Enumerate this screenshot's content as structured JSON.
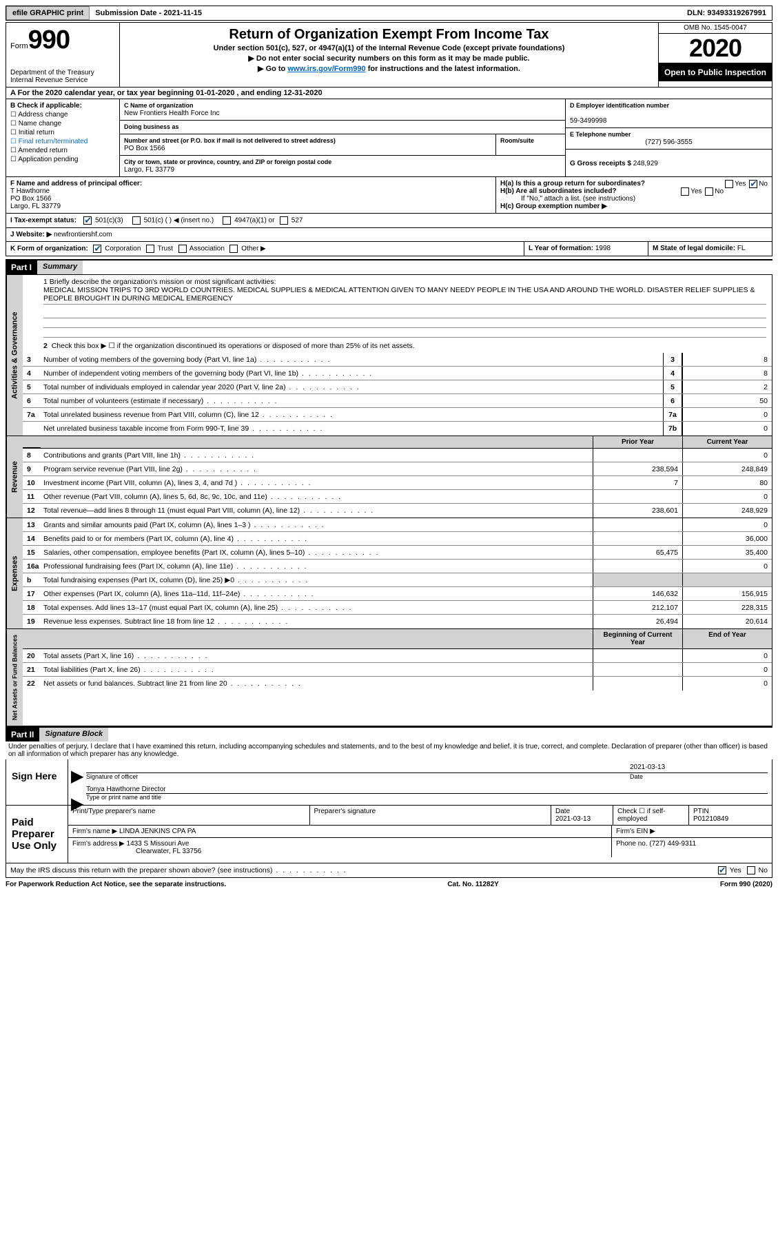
{
  "topbar": {
    "efile_btn": "efile GRAPHIC print",
    "submission_label": "Submission Date - 2021-11-15",
    "dln_label": "DLN: 93493319267991"
  },
  "header": {
    "form_word": "Form",
    "form_number": "990",
    "dept": "Department of the Treasury\nInternal Revenue Service",
    "title": "Return of Organization Exempt From Income Tax",
    "subtitle": "Under section 501(c), 527, or 4947(a)(1) of the Internal Revenue Code (except private foundations)",
    "arrow1": "▶ Do not enter social security numbers on this form as it may be made public.",
    "arrow2_pre": "▶ Go to ",
    "arrow2_link": "www.irs.gov/Form990",
    "arrow2_post": " for instructions and the latest information.",
    "omb": "OMB No. 1545-0047",
    "year": "2020",
    "inspection": "Open to Public Inspection"
  },
  "row_a": "A For the 2020 calendar year, or tax year beginning 01-01-2020    , and ending 12-31-2020",
  "col_b": {
    "header": "B Check if applicable:",
    "items": [
      "Address change",
      "Name change",
      "Initial return",
      "Final return/terminated",
      "Amended return",
      "Application pending"
    ]
  },
  "col_c": {
    "name_label": "C Name of organization",
    "name": "New Frontiers Health Force Inc",
    "dba_label": "Doing business as",
    "dba": "",
    "addr_label": "Number and street (or P.O. box if mail is not delivered to street address)",
    "addr": "PO Box 1566",
    "room_label": "Room/suite",
    "city_label": "City or town, state or province, country, and ZIP or foreign postal code",
    "city": "Largo, FL  33779"
  },
  "col_d": {
    "ein_label": "D Employer identification number",
    "ein": "59-3499998",
    "phone_label": "E Telephone number",
    "phone": "(727) 596-3555",
    "gross_label": "G Gross receipts $ ",
    "gross": "248,929"
  },
  "row_f": {
    "f_label": "F Name and address of principal officer:",
    "f_name": "T Hawthorne",
    "f_addr1": "PO Box 1566",
    "f_addr2": "Largo, FL  33779",
    "ha_label": "H(a)  Is this a group return for subordinates?",
    "hb_label": "H(b)  Are all subordinates included?",
    "hb_note": "If \"No,\" attach a list. (see instructions)",
    "hc_label": "H(c)  Group exemption number ▶",
    "yes": "Yes",
    "no": "No"
  },
  "row_i": {
    "label": "I  Tax-exempt status:",
    "opt1": "501(c)(3)",
    "opt2": "501(c) (  ) ◀ (insert no.)",
    "opt3": "4947(a)(1) or",
    "opt4": "527"
  },
  "row_j": {
    "label": "J  Website: ▶ ",
    "value": "newfrontiershf.com"
  },
  "row_k": {
    "label": "K Form of organization:",
    "opts": [
      "Corporation",
      "Trust",
      "Association",
      "Other ▶"
    ],
    "l_label": "L Year of formation: ",
    "l_val": "1998",
    "m_label": "M State of legal domicile: ",
    "m_val": "FL"
  },
  "part1": {
    "tag": "Part I",
    "title": "Summary"
  },
  "summary": {
    "q1_label": "1   Briefly describe the organization's mission or most significant activities:",
    "q1_text": "MEDICAL MISSION TRIPS TO 3RD WORLD COUNTRIES. MEDICAL SUPPLIES & MEDICAL ATTENTION GIVEN TO MANY NEEDY PEOPLE IN THE USA AND AROUND THE WORLD. DISASTER RELIEF SUPPLIES & PEOPLE BROUGHT IN DURING MEDICAL EMERGENCY",
    "q2": "Check this box ▶ ☐  if the organization discontinued its operations or disposed of more than 25% of its net assets."
  },
  "gov_lines": [
    {
      "n": "3",
      "d": "Number of voting members of the governing body (Part VI, line 1a)",
      "box": "3",
      "v": "8"
    },
    {
      "n": "4",
      "d": "Number of independent voting members of the governing body (Part VI, line 1b)",
      "box": "4",
      "v": "8"
    },
    {
      "n": "5",
      "d": "Total number of individuals employed in calendar year 2020 (Part V, line 2a)",
      "box": "5",
      "v": "2"
    },
    {
      "n": "6",
      "d": "Total number of volunteers (estimate if necessary)",
      "box": "6",
      "v": "50"
    },
    {
      "n": "7a",
      "d": "Total unrelated business revenue from Part VIII, column (C), line 12",
      "box": "7a",
      "v": "0"
    },
    {
      "n": "",
      "d": "Net unrelated business taxable income from Form 990-T, line 39",
      "box": "7b",
      "v": "0"
    }
  ],
  "th": {
    "prior": "Prior Year",
    "current": "Current Year",
    "begin": "Beginning of Current Year",
    "end": "End of Year"
  },
  "rev_lines": [
    {
      "n": "8",
      "d": "Contributions and grants (Part VIII, line 1h)",
      "p": "",
      "c": "0"
    },
    {
      "n": "9",
      "d": "Program service revenue (Part VIII, line 2g)",
      "p": "238,594",
      "c": "248,849"
    },
    {
      "n": "10",
      "d": "Investment income (Part VIII, column (A), lines 3, 4, and 7d )",
      "p": "7",
      "c": "80"
    },
    {
      "n": "11",
      "d": "Other revenue (Part VIII, column (A), lines 5, 6d, 8c, 9c, 10c, and 11e)",
      "p": "",
      "c": "0"
    },
    {
      "n": "12",
      "d": "Total revenue—add lines 8 through 11 (must equal Part VIII, column (A), line 12)",
      "p": "238,601",
      "c": "248,929"
    }
  ],
  "exp_lines": [
    {
      "n": "13",
      "d": "Grants and similar amounts paid (Part IX, column (A), lines 1–3 )",
      "p": "",
      "c": "0"
    },
    {
      "n": "14",
      "d": "Benefits paid to or for members (Part IX, column (A), line 4)",
      "p": "",
      "c": "36,000"
    },
    {
      "n": "15",
      "d": "Salaries, other compensation, employee benefits (Part IX, column (A), lines 5–10)",
      "p": "65,475",
      "c": "35,400"
    },
    {
      "n": "16a",
      "d": "Professional fundraising fees (Part IX, column (A), line 11e)",
      "p": "",
      "c": "0"
    },
    {
      "n": "b",
      "d": "Total fundraising expenses (Part IX, column (D), line 25) ▶0",
      "p": "SHADED",
      "c": "SHADED"
    },
    {
      "n": "17",
      "d": "Other expenses (Part IX, column (A), lines 11a–11d, 11f–24e)",
      "p": "146,632",
      "c": "156,915"
    },
    {
      "n": "18",
      "d": "Total expenses. Add lines 13–17 (must equal Part IX, column (A), line 25)",
      "p": "212,107",
      "c": "228,315"
    },
    {
      "n": "19",
      "d": "Revenue less expenses. Subtract line 18 from line 12",
      "p": "26,494",
      "c": "20,614"
    }
  ],
  "net_lines": [
    {
      "n": "20",
      "d": "Total assets (Part X, line 16)",
      "p": "",
      "c": "0"
    },
    {
      "n": "21",
      "d": "Total liabilities (Part X, line 26)",
      "p": "",
      "c": "0"
    },
    {
      "n": "22",
      "d": "Net assets or fund balances. Subtract line 21 from line 20",
      "p": "",
      "c": "0"
    }
  ],
  "side_labels": {
    "gov": "Activities & Governance",
    "rev": "Revenue",
    "exp": "Expenses",
    "net": "Net Assets or Fund Balances"
  },
  "part2": {
    "tag": "Part II",
    "title": "Signature Block"
  },
  "sig": {
    "penalty": "Under penalties of perjury, I declare that I have examined this return, including accompanying schedules and statements, and to the best of my knowledge and belief, it is true, correct, and complete. Declaration of preparer (other than officer) is based on all information of which preparer has any knowledge.",
    "sign_here": "Sign Here",
    "sig_officer": "Signature of officer",
    "date": "Date",
    "date_val": "2021-03-13",
    "name_title": "Tonya Hawthorne  Director",
    "type_name": "Type or print name and title",
    "paid": "Paid Preparer Use Only",
    "print_name": "Print/Type preparer's name",
    "prep_sig": "Preparer's signature",
    "prep_date": "Date",
    "prep_date_val": "2021-03-13",
    "check_self": "Check ☐ if self-employed",
    "ptin_label": "PTIN",
    "ptin": "P01210849",
    "firm_name_label": "Firm's name     ▶ ",
    "firm_name": "LINDA JENKINS CPA PA",
    "firm_ein": "Firm's EIN ▶",
    "firm_addr_label": "Firm's address ▶ ",
    "firm_addr1": "1433 S Missouri Ave",
    "firm_addr2": "Clearwater, FL  33756",
    "phone_label": "Phone no. ",
    "phone": "(727) 449-9311",
    "may_irs": "May the IRS discuss this return with the preparer shown above? (see instructions)",
    "yes": "Yes",
    "no": "No"
  },
  "footer": {
    "left": "For Paperwork Reduction Act Notice, see the separate instructions.",
    "mid": "Cat. No. 11282Y",
    "right": "Form 990 (2020)"
  }
}
